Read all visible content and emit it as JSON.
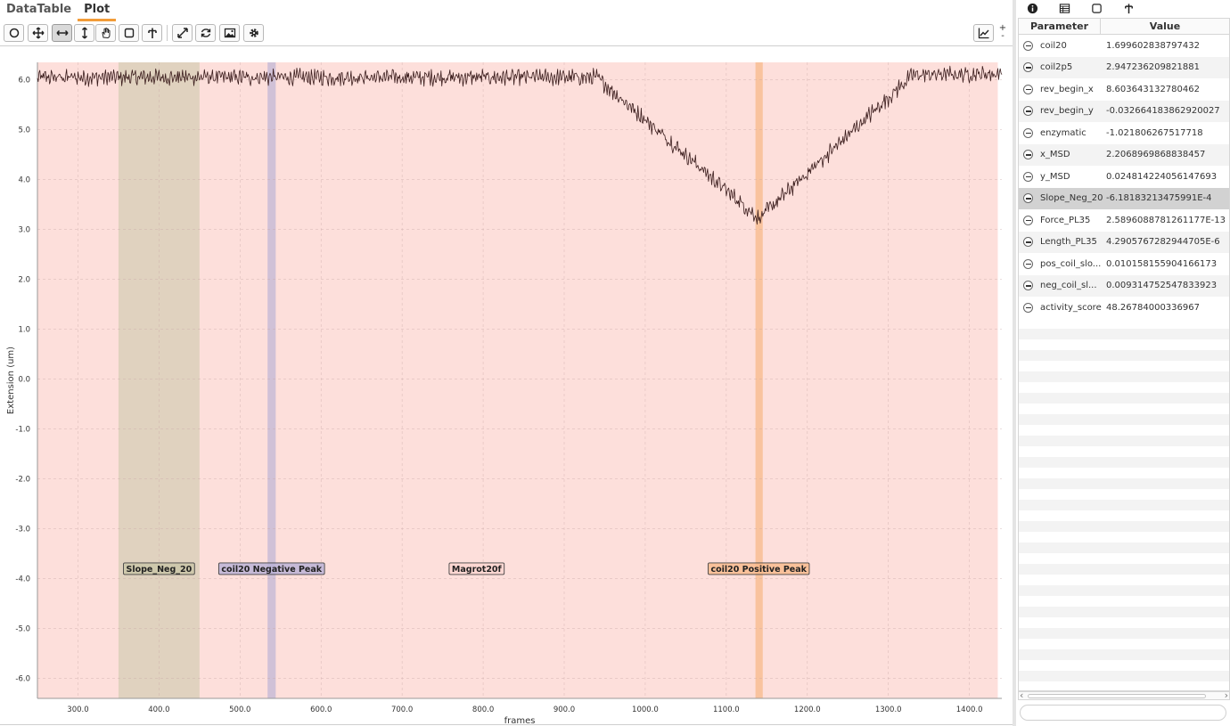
{
  "tabs": [
    {
      "label": "DataTable"
    },
    {
      "label": "Plot"
    }
  ],
  "toolbar": {
    "tools": [
      {
        "name": "select-tool",
        "icon": "circle-icon"
      },
      {
        "name": "pan-tool",
        "icon": "move-icon"
      },
      {
        "name": "xrange-tool",
        "icon": "horizontal-resize-icon",
        "active": true
      },
      {
        "name": "yrange-tool",
        "icon": "vertical-resize-icon"
      },
      {
        "name": "drag-tool",
        "icon": "hand-icon"
      },
      {
        "name": "box-tool",
        "icon": "square-icon"
      },
      {
        "name": "marker-tool",
        "icon": "marker-icon"
      },
      {
        "name": "fit-tool",
        "icon": "expand-icon"
      },
      {
        "name": "refresh-tool",
        "icon": "refresh-icon"
      },
      {
        "name": "export-image-tool",
        "icon": "image-icon"
      },
      {
        "name": "settings-tool",
        "icon": "gear-icon"
      },
      {
        "name": "chart-type-tool",
        "icon": "line-chart-icon"
      }
    ],
    "zoom_plus": "+",
    "zoom_minus": "-"
  },
  "chart_data": {
    "type": "line",
    "xlabel": "frames",
    "ylabel": "Extension (um)",
    "xlim": [
      250,
      1440
    ],
    "ylim": [
      -6.4,
      6.35
    ],
    "xticks": [
      300,
      400,
      500,
      600,
      700,
      800,
      900,
      1000,
      1100,
      1200,
      1300,
      1400
    ],
    "xtick_labels": [
      "300.0",
      "400.0",
      "500.0",
      "600.0",
      "700.0",
      "800.0",
      "900.0",
      "1000.0",
      "1100.0",
      "1200.0",
      "1300.0",
      "1400.0"
    ],
    "yticks": [
      6,
      5,
      4,
      3,
      2,
      1,
      0,
      -1,
      -2,
      -3,
      -4,
      -5,
      -6
    ],
    "ytick_labels": [
      "6.0",
      "5.0",
      "4.0",
      "3.0",
      "2.0",
      "1.0",
      "0.0",
      "-1.0",
      "-2.0",
      "-3.0",
      "-4.0",
      "-5.0",
      "-6.0"
    ],
    "grid": true,
    "series": [
      {
        "color": "#3a1c1c",
        "baseline": 6.05,
        "noise": 0.12,
        "x_range": [
          250,
          1440
        ],
        "trend": [
          {
            "x": 250,
            "y": 6.05
          },
          {
            "x": 940,
            "y": 6.05
          },
          {
            "x": 1140,
            "y": 3.22
          },
          {
            "x": 1330,
            "y": 6.1
          },
          {
            "x": 1440,
            "y": 6.12
          }
        ]
      }
    ],
    "regions": [
      {
        "label": "Magrot20f",
        "x0": 250,
        "x1": 1435,
        "color": "#fcd4cf",
        "opacity": 0.75,
        "label_x": 792
      },
      {
        "label": "Slope_Neg_20",
        "x0": 350,
        "x1": 450,
        "color": "#c9c6a7",
        "opacity": 0.55,
        "label_x": 400
      },
      {
        "label": "coil20 Negative Peak",
        "x0": 534,
        "x1": 544,
        "color": "#b8b0d6",
        "opacity": 0.65,
        "label_x": 539
      },
      {
        "label": "coil20 Positive Peak",
        "x0": 1136,
        "x1": 1145,
        "color": "#f7b98a",
        "opacity": 0.75,
        "label_x": 1140
      }
    ],
    "region_label_y": -3.8
  },
  "side_tabs": [
    {
      "icon": "info-icon"
    },
    {
      "icon": "table-icon"
    },
    {
      "icon": "square-icon"
    },
    {
      "icon": "marker-icon"
    }
  ],
  "params": {
    "header": {
      "parameter": "Parameter",
      "value": "Value"
    },
    "rows": [
      {
        "name": "coil20",
        "value": "1.699602838797432"
      },
      {
        "name": "coil2p5",
        "value": "2.947236209821881"
      },
      {
        "name": "rev_begin_x",
        "value": "8.603643132780462"
      },
      {
        "name": "rev_begin_y",
        "value": "-0.032664183862920027"
      },
      {
        "name": "enzymatic",
        "value": "-1.021806267517718"
      },
      {
        "name": "x_MSD",
        "value": "2.2068969868838457"
      },
      {
        "name": "y_MSD",
        "value": "0.024814224056147693"
      },
      {
        "name": "Slope_Neg_20",
        "value": "-6.18183213475991E-4",
        "selected": true
      },
      {
        "name": "Force_PL35",
        "value": "2.5896088781261177E-13"
      },
      {
        "name": "Length_PL35",
        "value": "4.2905767282944705E-6"
      },
      {
        "name": "pos_coil_slo...",
        "value": "0.010158155904166173"
      },
      {
        "name": "neg_coil_sl...",
        "value": "0.009314752547833923"
      },
      {
        "name": "activity_score",
        "value": "48.26784000336967"
      }
    ]
  },
  "search": {
    "placeholder": ""
  }
}
